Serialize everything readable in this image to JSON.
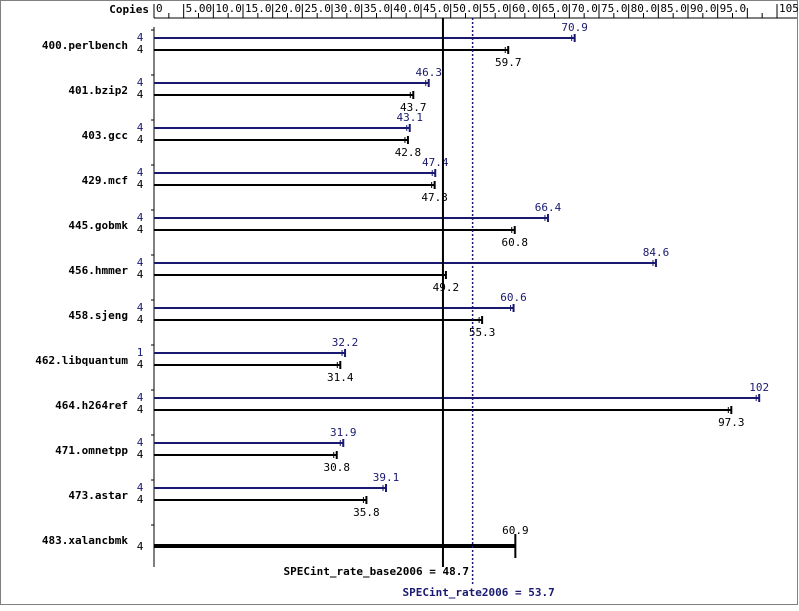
{
  "chart_data": {
    "type": "bar",
    "orientation": "horizontal",
    "header": "Copies",
    "xlim": [
      0,
      105
    ],
    "xticks": [
      "0",
      "5.00",
      "10.0",
      "15.0",
      "20.0",
      "25.0",
      "30.0",
      "35.0",
      "40.0",
      "45.0",
      "50.0",
      "55.0",
      "60.0",
      "65.0",
      "70.0",
      "75.0",
      "80.0",
      "85.0",
      "90.0",
      "95.0",
      "105"
    ],
    "xtick_values": [
      0,
      5,
      10,
      15,
      20,
      25,
      30,
      35,
      40,
      45,
      50,
      55,
      60,
      65,
      70,
      75,
      80,
      85,
      90,
      95,
      105
    ],
    "colors": {
      "peak": "#191970",
      "base": "#000000"
    },
    "series": [
      {
        "key": "peak",
        "color": "#191970"
      },
      {
        "key": "base",
        "color": "#000000"
      }
    ],
    "benchmarks": [
      {
        "name": "400.perlbench",
        "peak_copies": "4",
        "peak": 70.9,
        "peak_label": "70.9",
        "base_copies": "4",
        "base": 59.7,
        "base_label": "59.7"
      },
      {
        "name": "401.bzip2",
        "peak_copies": "4",
        "peak": 46.3,
        "peak_label": "46.3",
        "base_copies": "4",
        "base": 43.7,
        "base_label": "43.7"
      },
      {
        "name": "403.gcc",
        "peak_copies": "4",
        "peak": 43.1,
        "peak_label": "43.1",
        "base_copies": "4",
        "base": 42.8,
        "base_label": "42.8"
      },
      {
        "name": "429.mcf",
        "peak_copies": "4",
        "peak": 47.4,
        "peak_label": "47.4",
        "base_copies": "4",
        "base": 47.3,
        "base_label": "47.3"
      },
      {
        "name": "445.gobmk",
        "peak_copies": "4",
        "peak": 66.4,
        "peak_label": "66.4",
        "base_copies": "4",
        "base": 60.8,
        "base_label": "60.8"
      },
      {
        "name": "456.hmmer",
        "peak_copies": "4",
        "peak": 84.6,
        "peak_label": "84.6",
        "base_copies": "4",
        "base": 49.2,
        "base_label": "49.2"
      },
      {
        "name": "458.sjeng",
        "peak_copies": "4",
        "peak": 60.6,
        "peak_label": "60.6",
        "base_copies": "4",
        "base": 55.3,
        "base_label": "55.3"
      },
      {
        "name": "462.libquantum",
        "peak_copies": "1",
        "peak": 32.2,
        "peak_label": "32.2",
        "base_copies": "4",
        "base": 31.4,
        "base_label": "31.4"
      },
      {
        "name": "464.h264ref",
        "peak_copies": "4",
        "peak": 102,
        "peak_label": "102",
        "base_copies": "4",
        "base": 97.3,
        "base_label": "97.3"
      },
      {
        "name": "471.omnetpp",
        "peak_copies": "4",
        "peak": 31.9,
        "peak_label": "31.9",
        "base_copies": "4",
        "base": 30.8,
        "base_label": "30.8"
      },
      {
        "name": "473.astar",
        "peak_copies": "4",
        "peak": 39.1,
        "peak_label": "39.1",
        "base_copies": "4",
        "base": 35.8,
        "base_label": "35.8"
      },
      {
        "name": "483.xalancbmk",
        "peak_copies": null,
        "peak": null,
        "peak_label": null,
        "base_copies": "4",
        "base": 60.9,
        "base_label": "60.9",
        "single": true
      }
    ],
    "summary": {
      "base_value": 48.7,
      "base_label": "SPECint_rate_base2006 = 48.7",
      "peak_value": 53.7,
      "peak_label": "SPECint_rate2006 = 53.7"
    }
  }
}
